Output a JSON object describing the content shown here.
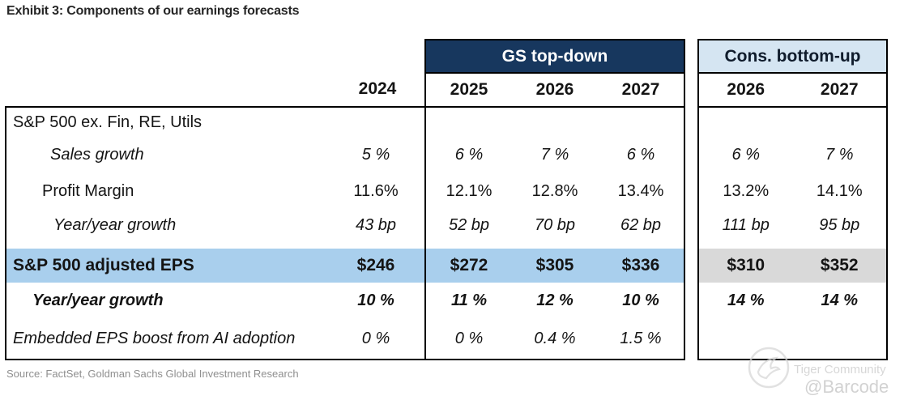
{
  "title": "Exhibit 3: Components of our earnings forecasts",
  "source": "Source: FactSet, Goldman Sachs Global Investment Research",
  "watermark": {
    "community": "Tiger Community",
    "handle": "@Barcode"
  },
  "colors": {
    "navy_header_bg": "#17375e",
    "navy_header_text": "#ffffff",
    "cons_header_bg": "#d5e5f2",
    "highlight_blue": "#a9cfed",
    "highlight_gray": "#d9d9d9",
    "border": "#000000",
    "source_text": "#8f8f8f"
  },
  "table": {
    "group_headers": {
      "gs": "GS top-down",
      "cons": "Cons. bottom-up"
    },
    "years": {
      "base": "2024",
      "gs": [
        "2025",
        "2026",
        "2027"
      ],
      "cons": [
        "2026",
        "2027"
      ]
    },
    "rows": [
      {
        "label": "S&P 500 ex. Fin, RE, Utils",
        "style": "regular",
        "indent": 0,
        "highlight": false,
        "values": [
          "",
          "",
          "",
          "",
          "",
          ""
        ]
      },
      {
        "label": "Sales growth",
        "style": "italic",
        "indent": 46,
        "highlight": false,
        "values": [
          "5 %",
          "6 %",
          "7 %",
          "6 %",
          "6 %",
          "7 %"
        ]
      },
      {
        "label": "Profit Margin",
        "style": "regular",
        "indent": 36,
        "highlight": false,
        "values": [
          "11.6%",
          "12.1%",
          "12.8%",
          "13.4%",
          "13.2%",
          "14.1%"
        ]
      },
      {
        "label": "Year/year growth",
        "style": "italic",
        "indent": 50,
        "highlight": false,
        "values": [
          "43 bp",
          "52 bp",
          "70 bp",
          "62 bp",
          "111 bp",
          "95 bp"
        ]
      },
      {
        "label": "S&P 500 adjusted EPS",
        "style": "bold",
        "indent": 0,
        "highlight": true,
        "values": [
          "$246",
          "$272",
          "$305",
          "$336",
          "$310",
          "$352"
        ]
      },
      {
        "label": "Year/year growth",
        "style": "bold-italic",
        "indent": 24,
        "highlight": false,
        "values": [
          "10 %",
          "11 %",
          "12 %",
          "10 %",
          "14 %",
          "14 %"
        ]
      },
      {
        "label": "Embedded EPS boost from AI adoption",
        "style": "italic",
        "indent": 0,
        "highlight": false,
        "values": [
          "0 %",
          "0 %",
          "0.4 %",
          "1.5 %",
          "",
          ""
        ]
      }
    ]
  },
  "chart_data": {
    "type": "table",
    "title": "Exhibit 3: Components of our earnings forecasts",
    "column_groups": [
      "(base)",
      "GS top-down",
      "Cons. bottom-up"
    ],
    "columns": [
      "2024",
      "GS 2025",
      "GS 2026",
      "GS 2027",
      "Cons 2026",
      "Cons 2027"
    ],
    "rows": [
      {
        "label": "S&P 500 ex. Fin, RE, Utils",
        "values": [
          "",
          "",
          "",
          "",
          "",
          ""
        ]
      },
      {
        "label": "Sales growth",
        "values": [
          "5 %",
          "6 %",
          "7 %",
          "6 %",
          "6 %",
          "7 %"
        ]
      },
      {
        "label": "Profit Margin",
        "values": [
          "11.6%",
          "12.1%",
          "12.8%",
          "13.4%",
          "13.2%",
          "14.1%"
        ]
      },
      {
        "label": "Year/year growth (margin)",
        "values": [
          "43 bp",
          "52 bp",
          "70 bp",
          "62 bp",
          "111 bp",
          "95 bp"
        ]
      },
      {
        "label": "S&P 500 adjusted EPS",
        "values": [
          "$246",
          "$272",
          "$305",
          "$336",
          "$310",
          "$352"
        ]
      },
      {
        "label": "Year/year growth (EPS)",
        "values": [
          "10 %",
          "11 %",
          "12 %",
          "10 %",
          "14 %",
          "14 %"
        ]
      },
      {
        "label": "Embedded EPS boost from AI adoption",
        "values": [
          "0 %",
          "0 %",
          "0.4 %",
          "1.5 %",
          "",
          ""
        ]
      }
    ],
    "source": "Source: FactSet, Goldman Sachs Global Investment Research",
    "layout": "left block = row labels + 2024 base column; middle bordered block = GS top-down 2025-2027; right bordered block = Cons. bottom-up 2026-2027; EPS row highlighted blue (GS) and gray (consensus)"
  }
}
